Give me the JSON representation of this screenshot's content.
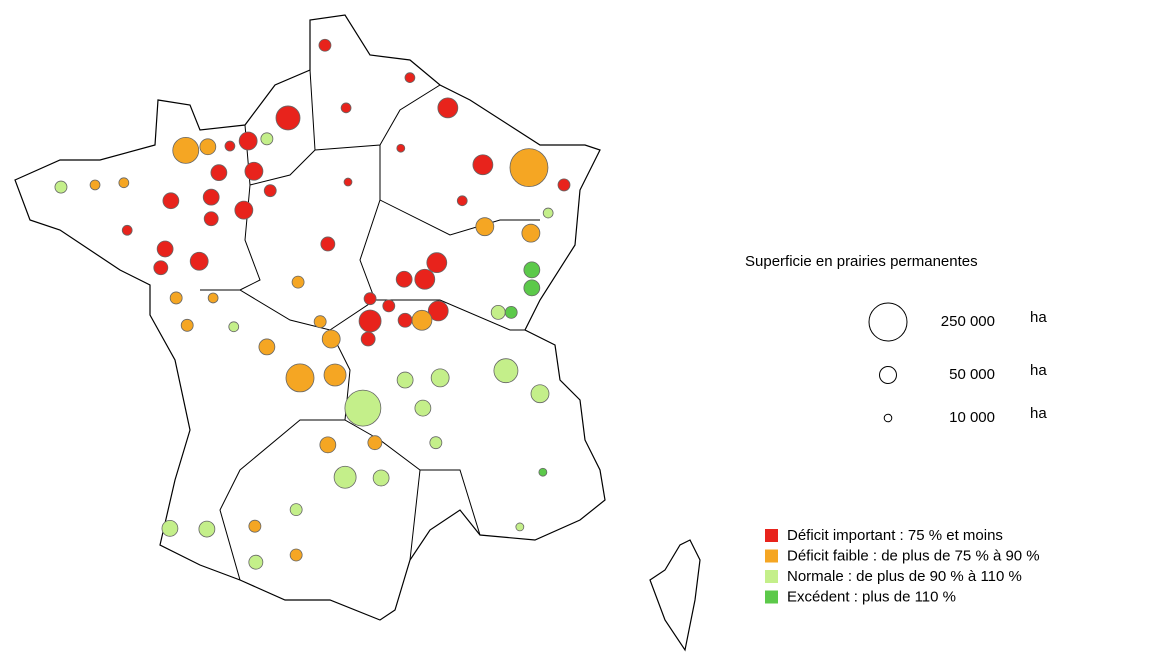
{
  "size_legend": {
    "title": "Superficie en prairies permanentes",
    "unit": "ha",
    "entries": [
      {
        "value": 250000,
        "label": "250 000"
      },
      {
        "value": 50000,
        "label": "50 000"
      },
      {
        "value": 10000,
        "label": "10 000"
      }
    ]
  },
  "classes": [
    {
      "name": "Déficit important : 75 % et moins",
      "color": "#e8231c"
    },
    {
      "name": "Déficit faible :  de plus de 75 % à 90 %",
      "color": "#f5a623"
    },
    {
      "name": "Normale : de plus de 90 % à 110 %",
      "color": "#c4ef8a"
    },
    {
      "name": "Excédent : plus de 110 %",
      "color": "#5cc94a"
    }
  ],
  "points": {
    "lon": [
      1.0,
      1.77,
      2.21,
      3.54,
      4.33,
      5.06,
      6.02,
      6.75,
      -1.13,
      -0.67,
      0.17,
      0.56,
      0.29,
      -0.44,
      0.63,
      -1.44,
      -0.6,
      0.08,
      -0.6,
      -1.56,
      -0.85,
      -1.65,
      -3.73,
      -3.02,
      -2.42,
      -2.35,
      -1.33,
      -0.56,
      2.25,
      3.35,
      4.63,
      5.1,
      6.06,
      6.42,
      6.08,
      6.08,
      4.1,
      3.85,
      3.42,
      3.1,
      4.13,
      3.79,
      3.44,
      2.71,
      2.67,
      1.9,
      0.56,
      1.67,
      1.25,
      1.98,
      2.56,
      3.44,
      4.17,
      5.54,
      6.25,
      3.81,
      4.08,
      2.19,
      2.94,
      1.83,
      2.81,
      1.17,
      0.31,
      -0.69,
      -1.46,
      0.33,
      1.17,
      6.31,
      5.83,
      -0.13,
      -1.1,
      5.38,
      5.65,
      1.83,
      1.21,
      2.71,
      -0.21
    ],
    "lat": [
      49.67,
      50.68,
      49.81,
      50.23,
      49.81,
      49.02,
      48.98,
      48.74,
      49.22,
      49.27,
      49.35,
      49.38,
      48.93,
      48.91,
      48.66,
      48.52,
      48.57,
      48.39,
      48.27,
      47.85,
      47.68,
      47.59,
      48.71,
      48.74,
      48.77,
      48.11,
      47.17,
      47.17,
      48.78,
      49.25,
      48.52,
      48.16,
      48.07,
      48.35,
      47.56,
      47.31,
      47.66,
      47.43,
      47.43,
      47.06,
      46.99,
      46.86,
      46.86,
      46.85,
      46.6,
      46.6,
      46.49,
      46.84,
      46.06,
      46.1,
      45.64,
      46.03,
      46.06,
      46.16,
      45.84,
      45.64,
      45.16,
      44.68,
      44.67,
      45.13,
      45.16,
      44.23,
      44.0,
      43.96,
      43.97,
      43.5,
      43.6,
      44.75,
      43.99,
      46.77,
      46.79,
      46.97,
      46.97,
      47.92,
      47.39,
      47.16,
      49.28
    ],
    "values": [
      100000,
      25000,
      17000,
      17000,
      69000,
      69000,
      250000,
      25000,
      117000,
      44000,
      56000,
      25000,
      56000,
      44000,
      25000,
      44000,
      44000,
      56000,
      34000,
      44000,
      56000,
      34000,
      25000,
      17000,
      17000,
      17000,
      25000,
      17000,
      11000,
      11000,
      17000,
      56000,
      56000,
      17000,
      44000,
      44000,
      69000,
      69000,
      44000,
      25000,
      69000,
      69000,
      34000,
      84000,
      34000,
      56000,
      44000,
      25000,
      136000,
      84000,
      224000,
      44000,
      56000,
      100000,
      56000,
      44000,
      25000,
      84000,
      44000,
      44000,
      34000,
      25000,
      25000,
      44000,
      44000,
      34000,
      25000,
      11000,
      11000,
      17000,
      25000,
      34000,
      25000,
      34000,
      25000,
      25000,
      17000
    ],
    "class": [
      0,
      0,
      0,
      0,
      0,
      0,
      1,
      0,
      1,
      1,
      0,
      2,
      0,
      0,
      0,
      0,
      0,
      0,
      0,
      0,
      0,
      0,
      2,
      1,
      1,
      0,
      1,
      1,
      0,
      0,
      0,
      1,
      1,
      2,
      3,
      3,
      0,
      0,
      0,
      0,
      0,
      1,
      0,
      0,
      0,
      1,
      1,
      1,
      1,
      1,
      2,
      2,
      2,
      2,
      2,
      2,
      2,
      2,
      2,
      1,
      1,
      2,
      1,
      2,
      2,
      2,
      1,
      3,
      2,
      2,
      1,
      2,
      3,
      0,
      1,
      0,
      0
    ]
  }
}
